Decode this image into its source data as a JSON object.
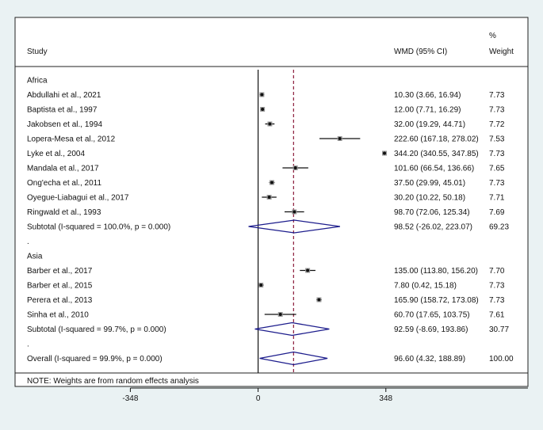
{
  "colors": {
    "background": "#eaf2f3",
    "panel": "#ffffff",
    "diamond": "#1c1c8c",
    "overall_line": "#8b1a3a"
  },
  "header": {
    "study": "Study",
    "wmd": "WMD (95% CI)",
    "weight_pct": "%",
    "weight": "Weight"
  },
  "note": "NOTE: Weights are from random effects analysis",
  "chart_data": {
    "type": "forest",
    "xlabel": "",
    "ticks": [
      -348,
      0,
      348
    ],
    "tick_labels": [
      "-348",
      "0",
      "348"
    ],
    "xlim": [
      -662,
      735
    ],
    "null_line": 0,
    "overall_line": 96.6,
    "groups": [
      {
        "label": "Africa",
        "studies": [
          {
            "name": "Abdullahi et al., 2021",
            "est": 10.3,
            "lo": 3.66,
            "hi": 16.94,
            "ci": "10.30 (3.66, 16.94)",
            "weight": "7.73"
          },
          {
            "name": "Baptista et al., 1997",
            "est": 12.0,
            "lo": 7.71,
            "hi": 16.29,
            "ci": "12.00 (7.71, 16.29)",
            "weight": "7.73"
          },
          {
            "name": "Jakobsen et al., 1994",
            "est": 32.0,
            "lo": 19.29,
            "hi": 44.71,
            "ci": "32.00 (19.29, 44.71)",
            "weight": "7.72"
          },
          {
            "name": "Lopera-Mesa et al., 2012",
            "est": 222.6,
            "lo": 167.18,
            "hi": 278.02,
            "ci": "222.60 (167.18, 278.02)",
            "weight": "7.53"
          },
          {
            "name": "Lyke et al., 2004",
            "est": 344.2,
            "lo": 340.55,
            "hi": 347.85,
            "ci": "344.20 (340.55, 347.85)",
            "weight": "7.73"
          },
          {
            "name": "Mandala et al., 2017",
            "est": 101.6,
            "lo": 66.54,
            "hi": 136.66,
            "ci": "101.60 (66.54, 136.66)",
            "weight": "7.65"
          },
          {
            "name": "Ong'echa et al., 2011",
            "est": 37.5,
            "lo": 29.99,
            "hi": 45.01,
            "ci": "37.50 (29.99, 45.01)",
            "weight": "7.73"
          },
          {
            "name": "Oyegue-Liabagui et al., 2017",
            "est": 30.2,
            "lo": 10.22,
            "hi": 50.18,
            "ci": "30.20 (10.22, 50.18)",
            "weight": "7.71"
          },
          {
            "name": "Ringwald et al., 1993",
            "est": 98.7,
            "lo": 72.06,
            "hi": 125.34,
            "ci": "98.70 (72.06, 125.34)",
            "weight": "7.69"
          }
        ],
        "subtotal": {
          "label": "Subtotal  (I-squared = 100.0%, p = 0.000)",
          "est": 98.52,
          "lo": -26.02,
          "hi": 223.07,
          "ci": "98.52 (-26.02, 223.07)",
          "weight": "69.23"
        }
      },
      {
        "label": "Asia",
        "studies": [
          {
            "name": "Barber et al., 2017",
            "est": 135.0,
            "lo": 113.8,
            "hi": 156.2,
            "ci": "135.00 (113.80, 156.20)",
            "weight": "7.70"
          },
          {
            "name": "Barber et al., 2015",
            "est": 7.8,
            "lo": 0.42,
            "hi": 15.18,
            "ci": "7.80 (0.42, 15.18)",
            "weight": "7.73"
          },
          {
            "name": "Perera et al., 2013",
            "est": 165.9,
            "lo": 158.72,
            "hi": 173.08,
            "ci": "165.90 (158.72, 173.08)",
            "weight": "7.73"
          },
          {
            "name": "Sinha et al., 2010",
            "est": 60.7,
            "lo": 17.65,
            "hi": 103.75,
            "ci": "60.70 (17.65, 103.75)",
            "weight": "7.61"
          }
        ],
        "subtotal": {
          "label": "Subtotal  (I-squared = 99.7%, p = 0.000)",
          "est": 92.59,
          "lo": -8.69,
          "hi": 193.86,
          "ci": "92.59 (-8.69, 193.86)",
          "weight": "30.77"
        }
      }
    ],
    "overall": {
      "label": "Overall  (I-squared = 99.9%, p = 0.000)",
      "est": 96.6,
      "lo": 4.32,
      "hi": 188.89,
      "ci": "96.60 (4.32, 188.89)",
      "weight": "100.00"
    },
    "spacer": "."
  }
}
